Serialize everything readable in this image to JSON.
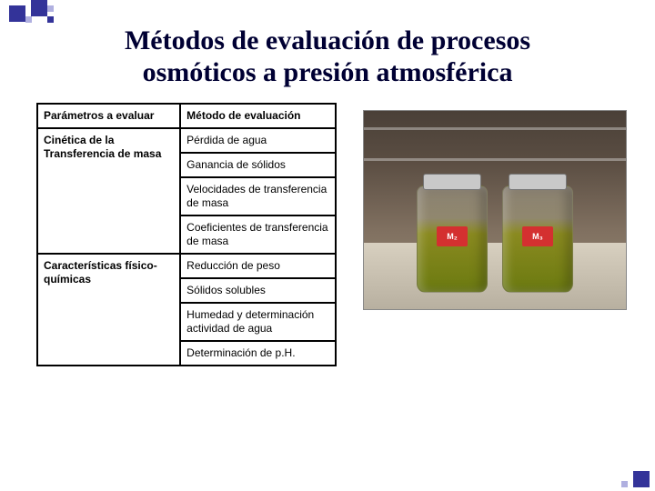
{
  "title_line1": "Métodos de evaluación de procesos",
  "title_line2": "osmóticos a presión atmosférica",
  "table": {
    "header_param": "Parámetros a evaluar",
    "header_method": "Método de evaluación",
    "group1_label": "Cinética de la Transferencia de masa",
    "group1_methods": [
      "Pérdida de agua",
      "Ganancia de sólidos",
      "Velocidades de transferencia de masa",
      "Coeficientes de transferencia de masa"
    ],
    "group2_label": "Características  físico-químicas",
    "group2_methods": [
      "Reducción de peso",
      "Sólidos solubles",
      "Humedad y determinación actividad de agua",
      "Determinación de p.H."
    ]
  },
  "photo": {
    "jar1_tag": "M₂",
    "jar2_tag": "M₃"
  },
  "colors": {
    "title_color": "#000033",
    "accent": "#333399",
    "border": "#000000",
    "tag_bg": "#d43030"
  }
}
